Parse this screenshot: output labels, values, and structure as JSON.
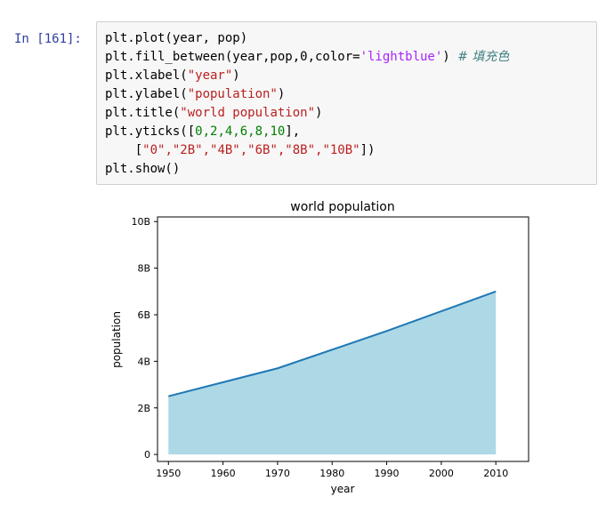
{
  "cell": {
    "prompt": "In  [161]:",
    "code": {
      "line1": "plt.plot(year, pop)",
      "line2_a": "plt.fill_between(year,pop,0,color=",
      "line2_str": "'lightblue'",
      "line2_b": ") ",
      "line2_comment": "# 填充色",
      "line3_a": "plt.xlabel(",
      "line3_str": "\"year\"",
      "line3_b": ")",
      "line4_a": "plt.ylabel(",
      "line4_str": "\"population\"",
      "line4_b": ")",
      "line5_a": "plt.title(",
      "line5_str": "\"world population\"",
      "line5_b": ")",
      "line6_a": "plt.yticks([",
      "line6_nums": "0,2,4,6,8,10",
      "line6_b": "],",
      "line7_indent": "    [",
      "line7_strs": "\"0\",\"2B\",\"4B\",\"6B\",\"8B\",\"10B\"",
      "line7_b": "])",
      "line8": "plt.show()"
    }
  },
  "chart_data": {
    "type": "area",
    "title": "world population",
    "xlabel": "year",
    "ylabel": "population",
    "x": [
      1950,
      1970,
      1990,
      2010
    ],
    "y": [
      2.5,
      3.7,
      5.3,
      7.0
    ],
    "xlim": [
      1948,
      2016
    ],
    "ylim": [
      -0.3,
      10.2
    ],
    "xticks": [
      1950,
      1960,
      1970,
      1980,
      1990,
      2000,
      2010
    ],
    "xtick_labels": [
      "1950",
      "1960",
      "1970",
      "1980",
      "1990",
      "2000",
      "2010"
    ],
    "yticks": [
      0,
      2,
      4,
      6,
      8,
      10
    ],
    "ytick_labels": [
      "0",
      "2B",
      "4B",
      "6B",
      "8B",
      "10B"
    ],
    "fill_color": "#add8e6",
    "line_color": "#1f77b4",
    "grid": false
  }
}
